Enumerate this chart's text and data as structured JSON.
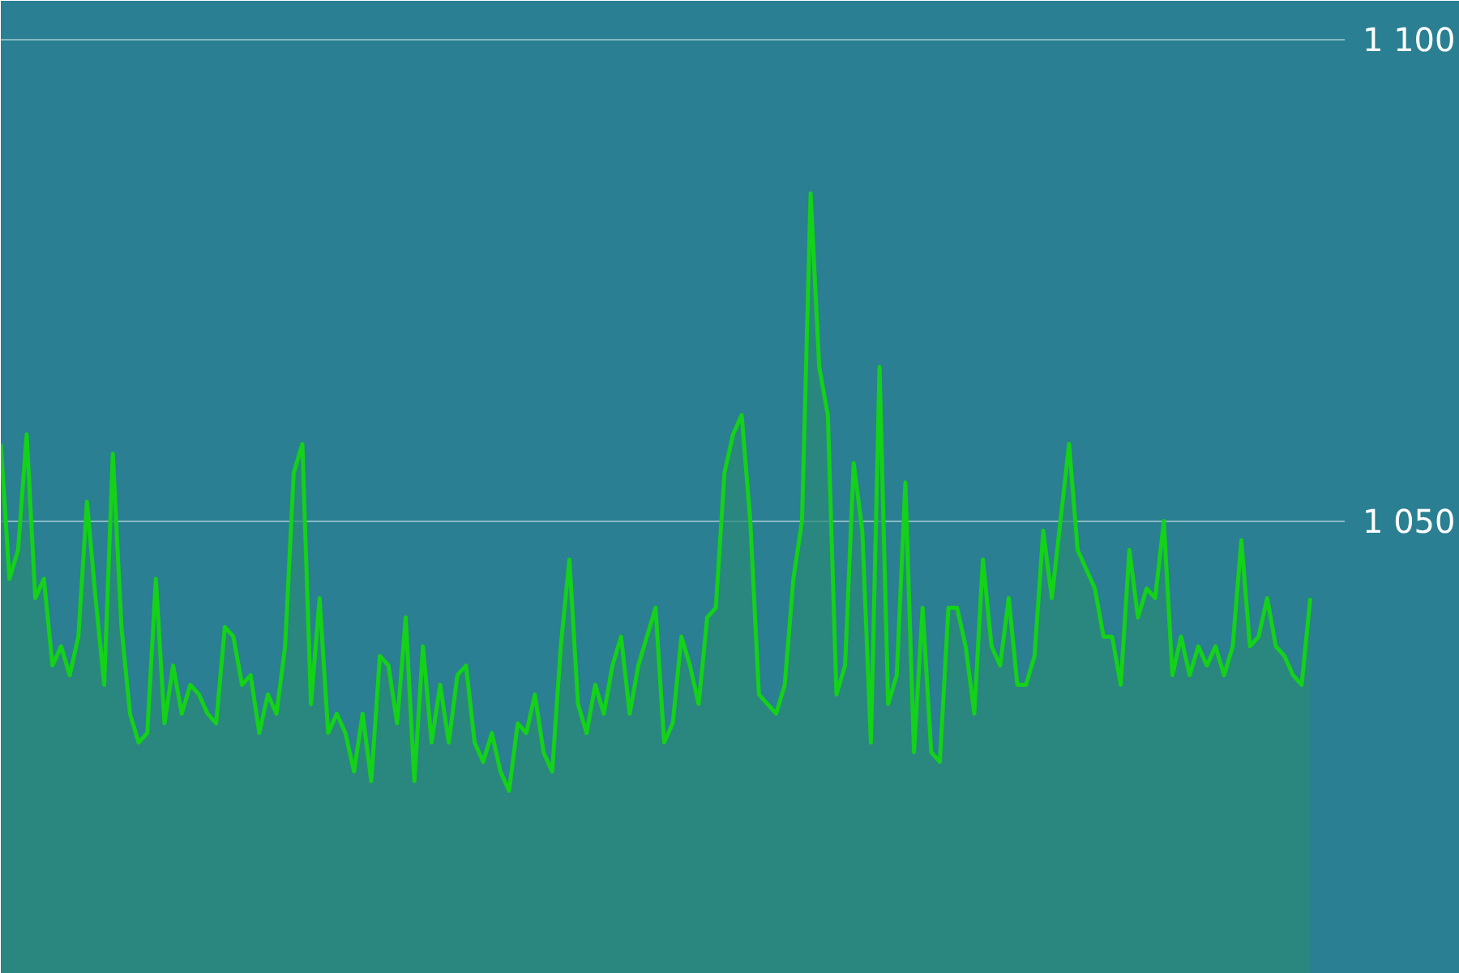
{
  "chart_data": {
    "type": "area",
    "categories": [
      null,
      null,
      null,
      null,
      null,
      null,
      null,
      null,
      null,
      null,
      null,
      null,
      null,
      null,
      null,
      null,
      null,
      null,
      null,
      null,
      null,
      null,
      null,
      null,
      null,
      null,
      null,
      null,
      null,
      null,
      null,
      null,
      null,
      null,
      null,
      null,
      null,
      null,
      null,
      null,
      null,
      null,
      null,
      null,
      null,
      null,
      null,
      null,
      null,
      null,
      null,
      null,
      null,
      null,
      null,
      null,
      null,
      null,
      null,
      null,
      null,
      null,
      null,
      null,
      null,
      null,
      null,
      null,
      null,
      null,
      null,
      null,
      null,
      null,
      null,
      null,
      null,
      null,
      null,
      null,
      null,
      null,
      null,
      null,
      null,
      null,
      null,
      null,
      null,
      null,
      null,
      null,
      null,
      null,
      null,
      null,
      null,
      null,
      null,
      null,
      null,
      null,
      null,
      null,
      null,
      null,
      null,
      null,
      null,
      null,
      null,
      null,
      null,
      null,
      null,
      null,
      null,
      null,
      null,
      null,
      null,
      null,
      null,
      null,
      null,
      null,
      null,
      null,
      null,
      null,
      null,
      null,
      null,
      null,
      null,
      null,
      null,
      null,
      null,
      null,
      null,
      null,
      null,
      null,
      null,
      null,
      null,
      null,
      null,
      null,
      null,
      null,
      null
    ],
    "series": [
      {
        "color": "#14d11a",
        "values": [
          1058,
          1044,
          1047,
          1059,
          1042,
          1044,
          1035,
          1037,
          1034,
          1038,
          1052,
          1042,
          1033,
          1057,
          1039,
          1030,
          1027,
          1028,
          1044,
          1029,
          1035,
          1030,
          1033,
          1032,
          1030,
          1029,
          1039,
          1038,
          1033,
          1034,
          1028,
          1032,
          1030,
          1037,
          1055,
          1058,
          1031,
          1042,
          1028,
          1030,
          1028,
          1024,
          1030,
          1023,
          1036,
          1035,
          1029,
          1040,
          1023,
          1037,
          1027,
          1033,
          1027,
          1034,
          1035,
          1027,
          1025,
          1028,
          1024,
          1022,
          1029,
          1028,
          1032,
          1026,
          1024,
          1037,
          1046,
          1031,
          1028,
          1033,
          1030,
          1035,
          1038,
          1030,
          1035,
          1038,
          1041,
          1027,
          1029,
          1038,
          1035,
          1031,
          1040,
          1041,
          1055,
          1059,
          1061,
          1050,
          1032,
          1031,
          1030,
          1033,
          1044,
          1050,
          1084,
          1066,
          1061,
          1032,
          1035,
          1056,
          1049,
          1027,
          1066,
          1031,
          1034,
          1054,
          1026,
          1041,
          1026,
          1025,
          1041,
          1041,
          1037,
          1030,
          1046,
          1037,
          1035,
          1042,
          1033,
          1033,
          1036,
          1049,
          1042,
          1050,
          1058,
          1047,
          1045,
          1043,
          1038,
          1038,
          1033,
          1047,
          1040,
          1043,
          1042,
          1050,
          1034,
          1038,
          1034,
          1037,
          1035,
          1037,
          1034,
          1037,
          1048,
          1037,
          1038,
          1042,
          1037,
          1036,
          1034,
          1033,
          1042
        ]
      }
    ],
    "ylim": [
      1003,
      1104
    ],
    "yticks": [
      {
        "value": 1050,
        "label": "1 050"
      },
      {
        "value": 1100,
        "label": "1 100"
      }
    ],
    "grid": "y",
    "tick_labels": "y",
    "line_style": "solid",
    "marker": "none"
  }
}
